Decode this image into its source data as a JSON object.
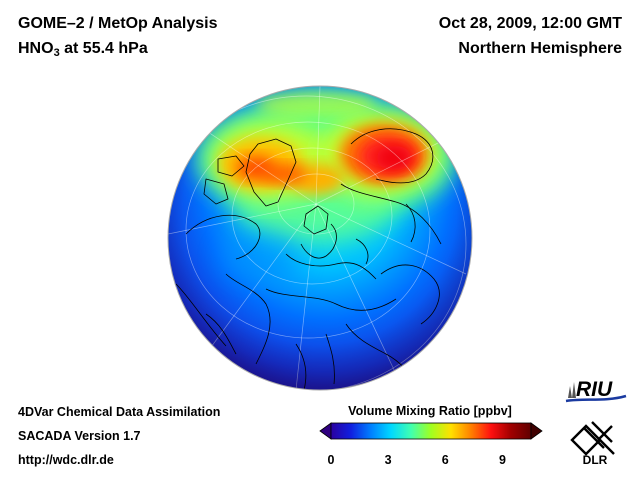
{
  "header": {
    "title_line1": "GOME–2 / MetOp Analysis",
    "species_prefix": "HNO",
    "species_subscript": "3",
    "species_suffix": " at 55.4 hPa",
    "datetime": "Oct 28, 2009, 12:00 GMT",
    "region": "Northern Hemisphere"
  },
  "footer": {
    "line1": "4DVar Chemical Data Assimilation",
    "line2": "SACADA Version 1.7",
    "line3": "http://wdc.dlr.de"
  },
  "colorbar": {
    "title": "Volume Mixing Ratio [ppbv]",
    "min": 0,
    "max": 10.5,
    "ticks": [
      "0",
      "3",
      "6",
      "9"
    ],
    "tick_values": [
      0,
      3,
      6,
      9
    ],
    "colors": [
      "#2a00a0",
      "#1020e0",
      "#0080ff",
      "#00d8ff",
      "#40ffb0",
      "#a0ff20",
      "#ffe000",
      "#ff8000",
      "#ff1010",
      "#a00000",
      "#600000"
    ]
  },
  "logos": {
    "riu": "RIU",
    "dlr": "DLR"
  }
}
